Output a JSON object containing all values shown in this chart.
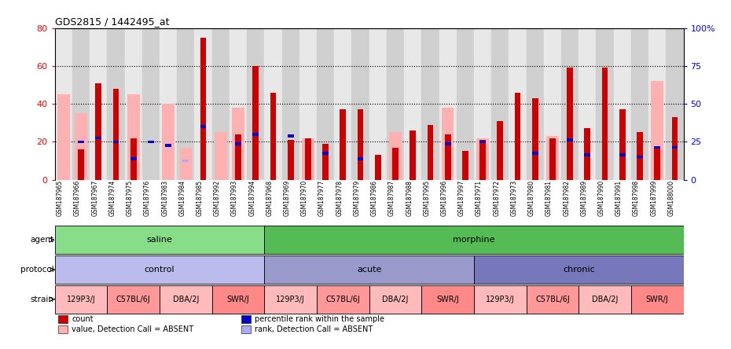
{
  "title": "GDS2815 / 1442495_at",
  "samples": [
    "GSM187965",
    "GSM187966",
    "GSM187967",
    "GSM187974",
    "GSM187975",
    "GSM187976",
    "GSM187983",
    "GSM187984",
    "GSM187985",
    "GSM187992",
    "GSM187993",
    "GSM187994",
    "GSM187968",
    "GSM187969",
    "GSM187970",
    "GSM187977",
    "GSM187978",
    "GSM187979",
    "GSM187986",
    "GSM187987",
    "GSM187988",
    "GSM187995",
    "GSM187996",
    "GSM187997",
    "GSM187971",
    "GSM187972",
    "GSM187973",
    "GSM187980",
    "GSM187981",
    "GSM187982",
    "GSM187989",
    "GSM187990",
    "GSM187991",
    "GSM187998",
    "GSM187999",
    "GSM188000"
  ],
  "red_values": [
    0,
    16,
    51,
    48,
    22,
    0,
    0,
    0,
    75,
    0,
    24,
    60,
    46,
    21,
    22,
    19,
    37,
    37,
    13,
    17,
    26,
    29,
    24,
    15,
    21,
    31,
    46,
    43,
    22,
    59,
    27,
    59,
    37,
    25,
    17,
    33
  ],
  "pink_values": [
    45,
    35,
    0,
    0,
    45,
    0,
    40,
    17,
    0,
    25,
    38,
    0,
    0,
    0,
    22,
    0,
    0,
    0,
    0,
    25,
    0,
    0,
    38,
    0,
    22,
    0,
    0,
    0,
    23,
    0,
    0,
    0,
    0,
    0,
    52,
    0
  ],
  "blue_values": [
    0,
    20,
    22,
    20,
    11,
    20,
    18,
    0,
    28,
    0,
    19,
    24,
    0,
    23,
    0,
    14,
    0,
    11,
    0,
    0,
    0,
    0,
    19,
    0,
    20,
    0,
    0,
    14,
    0,
    21,
    13,
    0,
    13,
    12,
    17,
    17
  ],
  "light_blue_values": [
    0,
    0,
    0,
    0,
    0,
    0,
    0,
    10,
    0,
    0,
    0,
    0,
    0,
    0,
    0,
    0,
    0,
    0,
    0,
    0,
    0,
    0,
    0,
    0,
    0,
    0,
    0,
    0,
    0,
    0,
    0,
    0,
    0,
    0,
    0,
    0
  ],
  "agent_groups": [
    {
      "label": "saline",
      "start": 0,
      "end": 12,
      "color": "#88DD88"
    },
    {
      "label": "morphine",
      "start": 12,
      "end": 36,
      "color": "#55BB55"
    }
  ],
  "protocol_groups": [
    {
      "label": "control",
      "start": 0,
      "end": 12,
      "color": "#BBBBEE"
    },
    {
      "label": "acute",
      "start": 12,
      "end": 24,
      "color": "#9999CC"
    },
    {
      "label": "chronic",
      "start": 24,
      "end": 36,
      "color": "#7777BB"
    }
  ],
  "strain_groups": [
    {
      "label": "129P3/J",
      "start": 0,
      "end": 3,
      "color": "#FFBBBB"
    },
    {
      "label": "C57BL/6J",
      "start": 3,
      "end": 6,
      "color": "#FF9999"
    },
    {
      "label": "DBA/2J",
      "start": 6,
      "end": 9,
      "color": "#FFBBBB"
    },
    {
      "label": "SWR/J",
      "start": 9,
      "end": 12,
      "color": "#FF8888"
    },
    {
      "label": "129P3/J",
      "start": 12,
      "end": 15,
      "color": "#FFBBBB"
    },
    {
      "label": "C57BL/6J",
      "start": 15,
      "end": 18,
      "color": "#FF9999"
    },
    {
      "label": "DBA/2J",
      "start": 18,
      "end": 21,
      "color": "#FFBBBB"
    },
    {
      "label": "SWR/J",
      "start": 21,
      "end": 24,
      "color": "#FF8888"
    },
    {
      "label": "129P3/J",
      "start": 24,
      "end": 27,
      "color": "#FFBBBB"
    },
    {
      "label": "C57BL/6J",
      "start": 27,
      "end": 30,
      "color": "#FF9999"
    },
    {
      "label": "DBA/2J",
      "start": 30,
      "end": 33,
      "color": "#FFBBBB"
    },
    {
      "label": "SWR/J",
      "start": 33,
      "end": 36,
      "color": "#FF8888"
    }
  ],
  "ylim_left": [
    0,
    80
  ],
  "ylim_right": [
    0,
    100
  ],
  "yticks_left": [
    0,
    20,
    40,
    60,
    80
  ],
  "ytick_labels_left": [
    "0",
    "20",
    "40",
    "60",
    "80"
  ],
  "yticks_right": [
    0,
    25,
    50,
    75,
    100
  ],
  "ytick_labels_right": [
    "0",
    "25",
    "50",
    "75",
    "100%"
  ],
  "bg_colors": [
    "#E8E8E8",
    "#D0D0D0"
  ],
  "grid_lines": [
    20,
    40,
    60
  ],
  "legend_items": [
    {
      "label": "count",
      "color": "#CC0000"
    },
    {
      "label": "percentile rank within the sample",
      "color": "#0000CC"
    },
    {
      "label": "value, Detection Call = ABSENT",
      "color": "#FFB0B0"
    },
    {
      "label": "rank, Detection Call = ABSENT",
      "color": "#AAAAFF"
    }
  ]
}
